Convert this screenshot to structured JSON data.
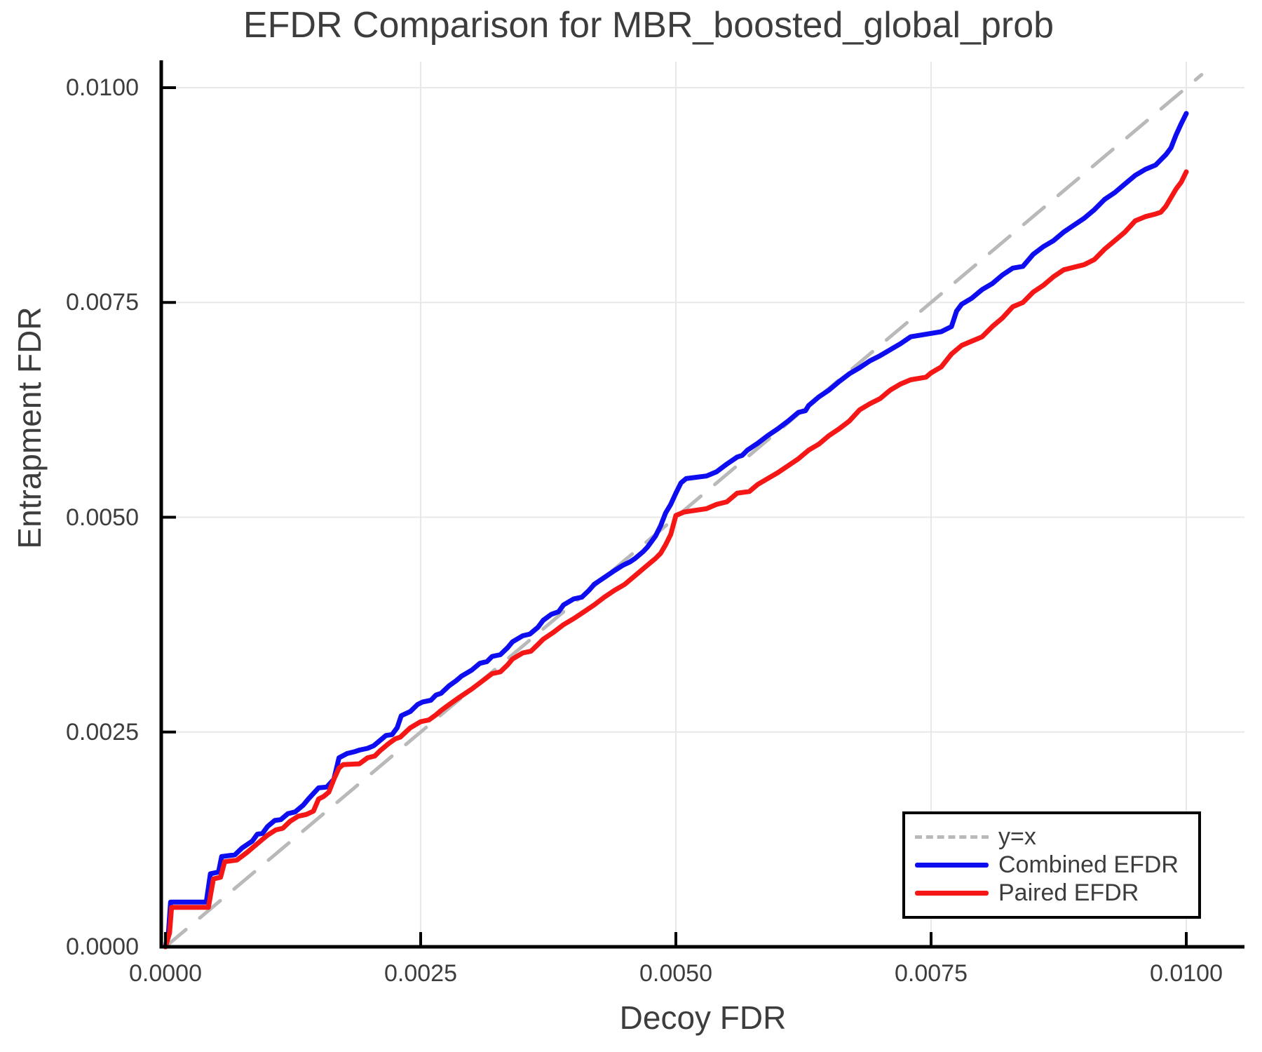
{
  "title": "EFDR Comparison for MBR_boosted_global_prob",
  "x_axis": {
    "label": "Decoy FDR",
    "tick_values": [
      0.0,
      0.0025,
      0.005,
      0.0075,
      0.01
    ],
    "tick_labels": [
      "0.0000",
      "0.0025",
      "0.0050",
      "0.0075",
      "0.0100"
    ]
  },
  "y_axis": {
    "label": "Entrapment FDR",
    "tick_values": [
      0.0,
      0.0025,
      0.005,
      0.0075,
      0.01
    ],
    "tick_labels": [
      "0.0000",
      "0.0025",
      "0.0050",
      "0.0075",
      "0.0100"
    ]
  },
  "legend": [
    {
      "label": "y=x",
      "color": "#b9b9b9",
      "dashed": true
    },
    {
      "label": "Combined EFDR",
      "color": "#0d0df0",
      "dashed": false
    },
    {
      "label": "Paired EFDR",
      "color": "#f51616",
      "dashed": false
    }
  ],
  "colors": {
    "combined": "#0d0df0",
    "paired": "#f51616",
    "identity": "#b9b9b9",
    "grid": "#e8e8e8",
    "axis": "#000000",
    "text": "#3d3d3d"
  },
  "chart_data": {
    "type": "line",
    "title": "EFDR Comparison for MBR_boosted_global_prob",
    "xlabel": "Decoy FDR",
    "ylabel": "Entrapment FDR",
    "xlim": [
      0,
      0.0106
    ],
    "ylim": [
      0,
      0.0103
    ],
    "grid": true,
    "legend_position": "bottom-right",
    "series": [
      {
        "name": "y=x",
        "style": "dashed",
        "color": "#b9b9b9",
        "width": 5,
        "points": [
          [
            0.0,
            0.0
          ],
          [
            0.01015,
            0.01015
          ]
        ]
      },
      {
        "name": "Combined EFDR",
        "style": "solid",
        "color": "#0d0df0",
        "width": 7,
        "points": [
          [
            0.0,
            0.0
          ],
          [
            3e-05,
            0.00018
          ],
          [
            5e-05,
            0.00052
          ],
          [
            0.0004,
            0.00052
          ],
          [
            0.00044,
            0.00085
          ],
          [
            0.00052,
            0.00087
          ],
          [
            0.00055,
            0.00105
          ],
          [
            0.00068,
            0.00107
          ],
          [
            0.00075,
            0.00115
          ],
          [
            0.00085,
            0.00123
          ],
          [
            0.0009,
            0.00131
          ],
          [
            0.00095,
            0.00132
          ],
          [
            0.001,
            0.0014
          ],
          [
            0.00107,
            0.00147
          ],
          [
            0.00113,
            0.00148
          ],
          [
            0.0012,
            0.00155
          ],
          [
            0.00127,
            0.00157
          ],
          [
            0.00135,
            0.00165
          ],
          [
            0.0014,
            0.00172
          ],
          [
            0.0015,
            0.00185
          ],
          [
            0.00158,
            0.00186
          ],
          [
            0.00165,
            0.00195
          ],
          [
            0.0017,
            0.0022
          ],
          [
            0.00178,
            0.00225
          ],
          [
            0.00185,
            0.00227
          ],
          [
            0.0019,
            0.00229
          ],
          [
            0.00198,
            0.00231
          ],
          [
            0.00204,
            0.00234
          ],
          [
            0.0021,
            0.0024
          ],
          [
            0.00216,
            0.00246
          ],
          [
            0.00222,
            0.00247
          ],
          [
            0.00227,
            0.00255
          ],
          [
            0.00231,
            0.00269
          ],
          [
            0.0024,
            0.00274
          ],
          [
            0.00247,
            0.00282
          ],
          [
            0.00252,
            0.00285
          ],
          [
            0.0026,
            0.00287
          ],
          [
            0.00265,
            0.00293
          ],
          [
            0.0027,
            0.00295
          ],
          [
            0.00278,
            0.00304
          ],
          [
            0.00285,
            0.0031
          ],
          [
            0.0029,
            0.00315
          ],
          [
            0.003,
            0.00322
          ],
          [
            0.00308,
            0.0033
          ],
          [
            0.00315,
            0.00332
          ],
          [
            0.0032,
            0.00338
          ],
          [
            0.00328,
            0.0034
          ],
          [
            0.00335,
            0.00348
          ],
          [
            0.0034,
            0.00355
          ],
          [
            0.0035,
            0.00362
          ],
          [
            0.00357,
            0.00364
          ],
          [
            0.00365,
            0.00372
          ],
          [
            0.0037,
            0.0038
          ],
          [
            0.00378,
            0.00387
          ],
          [
            0.00385,
            0.0039
          ],
          [
            0.0039,
            0.00398
          ],
          [
            0.004,
            0.00405
          ],
          [
            0.00408,
            0.00407
          ],
          [
            0.00415,
            0.00415
          ],
          [
            0.0042,
            0.00422
          ],
          [
            0.0043,
            0.0043
          ],
          [
            0.0044,
            0.00438
          ],
          [
            0.00448,
            0.00444
          ],
          [
            0.00455,
            0.00448
          ],
          [
            0.0046,
            0.00452
          ],
          [
            0.00468,
            0.0046
          ],
          [
            0.00472,
            0.00465
          ],
          [
            0.0048,
            0.00478
          ],
          [
            0.00485,
            0.0049
          ],
          [
            0.0049,
            0.00505
          ],
          [
            0.00495,
            0.00515
          ],
          [
            0.005,
            0.00528
          ],
          [
            0.00505,
            0.0054
          ],
          [
            0.0051,
            0.00545
          ],
          [
            0.0053,
            0.00548
          ],
          [
            0.0054,
            0.00553
          ],
          [
            0.0055,
            0.00562
          ],
          [
            0.0056,
            0.0057
          ],
          [
            0.00565,
            0.00572
          ],
          [
            0.0057,
            0.00578
          ],
          [
            0.0058,
            0.00586
          ],
          [
            0.0059,
            0.00595
          ],
          [
            0.006,
            0.00603
          ],
          [
            0.0061,
            0.00612
          ],
          [
            0.0062,
            0.00622
          ],
          [
            0.00627,
            0.00624
          ],
          [
            0.0063,
            0.0063
          ],
          [
            0.0064,
            0.0064
          ],
          [
            0.0065,
            0.00648
          ],
          [
            0.0066,
            0.00658
          ],
          [
            0.0067,
            0.00667
          ],
          [
            0.0068,
            0.00674
          ],
          [
            0.0069,
            0.00682
          ],
          [
            0.007,
            0.00688
          ],
          [
            0.0071,
            0.00695
          ],
          [
            0.0072,
            0.00702
          ],
          [
            0.0073,
            0.0071
          ],
          [
            0.0076,
            0.00716
          ],
          [
            0.0077,
            0.00722
          ],
          [
            0.00775,
            0.0074
          ],
          [
            0.0078,
            0.00748
          ],
          [
            0.0079,
            0.00755
          ],
          [
            0.008,
            0.00765
          ],
          [
            0.0081,
            0.00772
          ],
          [
            0.0082,
            0.00782
          ],
          [
            0.0083,
            0.0079
          ],
          [
            0.0084,
            0.00792
          ],
          [
            0.0085,
            0.00806
          ],
          [
            0.0086,
            0.00815
          ],
          [
            0.0087,
            0.00822
          ],
          [
            0.0088,
            0.00832
          ],
          [
            0.0089,
            0.0084
          ],
          [
            0.009,
            0.00848
          ],
          [
            0.0091,
            0.00858
          ],
          [
            0.0092,
            0.0087
          ],
          [
            0.0093,
            0.00878
          ],
          [
            0.0094,
            0.00888
          ],
          [
            0.0095,
            0.00898
          ],
          [
            0.0096,
            0.00905
          ],
          [
            0.0097,
            0.0091
          ],
          [
            0.0098,
            0.00922
          ],
          [
            0.00985,
            0.0093
          ],
          [
            0.0099,
            0.00945
          ],
          [
            0.00995,
            0.00958
          ],
          [
            0.01,
            0.0097
          ]
        ]
      },
      {
        "name": "Paired EFDR",
        "style": "solid",
        "color": "#f51616",
        "width": 7,
        "points": [
          [
            0.0,
            0.0
          ],
          [
            4e-05,
            0.00016
          ],
          [
            6e-05,
            0.00046
          ],
          [
            0.00042,
            0.00046
          ],
          [
            0.00047,
            0.00079
          ],
          [
            0.00054,
            0.00081
          ],
          [
            0.00058,
            0.00099
          ],
          [
            0.0007,
            0.00101
          ],
          [
            0.0008,
            0.0011
          ],
          [
            0.0009,
            0.0012
          ],
          [
            0.001,
            0.0013
          ],
          [
            0.00108,
            0.00136
          ],
          [
            0.00115,
            0.00138
          ],
          [
            0.00122,
            0.00146
          ],
          [
            0.0013,
            0.00152
          ],
          [
            0.00138,
            0.00154
          ],
          [
            0.00145,
            0.00158
          ],
          [
            0.0015,
            0.00172
          ],
          [
            0.00155,
            0.00175
          ],
          [
            0.0016,
            0.0018
          ],
          [
            0.00165,
            0.00195
          ],
          [
            0.0017,
            0.00208
          ],
          [
            0.00174,
            0.00212
          ],
          [
            0.0019,
            0.00213
          ],
          [
            0.00198,
            0.0022
          ],
          [
            0.00205,
            0.00222
          ],
          [
            0.0021,
            0.00228
          ],
          [
            0.00218,
            0.00236
          ],
          [
            0.00225,
            0.00242
          ],
          [
            0.0023,
            0.00244
          ],
          [
            0.0024,
            0.00255
          ],
          [
            0.0025,
            0.00262
          ],
          [
            0.00258,
            0.00264
          ],
          [
            0.00265,
            0.0027
          ],
          [
            0.0027,
            0.00275
          ],
          [
            0.00278,
            0.00282
          ],
          [
            0.00285,
            0.00288
          ],
          [
            0.0029,
            0.00292
          ],
          [
            0.003,
            0.003
          ],
          [
            0.0031,
            0.00309
          ],
          [
            0.0032,
            0.00318
          ],
          [
            0.00328,
            0.0032
          ],
          [
            0.00335,
            0.00328
          ],
          [
            0.0034,
            0.00335
          ],
          [
            0.0035,
            0.00342
          ],
          [
            0.00358,
            0.00344
          ],
          [
            0.00365,
            0.00352
          ],
          [
            0.0037,
            0.00358
          ],
          [
            0.0038,
            0.00366
          ],
          [
            0.0039,
            0.00375
          ],
          [
            0.004,
            0.00382
          ],
          [
            0.0041,
            0.0039
          ],
          [
            0.0042,
            0.00398
          ],
          [
            0.0043,
            0.00407
          ],
          [
            0.0044,
            0.00415
          ],
          [
            0.0045,
            0.00422
          ],
          [
            0.0046,
            0.00432
          ],
          [
            0.0047,
            0.00442
          ],
          [
            0.0048,
            0.00452
          ],
          [
            0.00485,
            0.00458
          ],
          [
            0.0049,
            0.00468
          ],
          [
            0.00495,
            0.0048
          ],
          [
            0.005,
            0.00502
          ],
          [
            0.00508,
            0.00506
          ],
          [
            0.0053,
            0.0051
          ],
          [
            0.0054,
            0.00515
          ],
          [
            0.0055,
            0.00518
          ],
          [
            0.0056,
            0.00528
          ],
          [
            0.00572,
            0.0053
          ],
          [
            0.0058,
            0.00538
          ],
          [
            0.0059,
            0.00545
          ],
          [
            0.006,
            0.00552
          ],
          [
            0.0061,
            0.0056
          ],
          [
            0.0062,
            0.00568
          ],
          [
            0.0063,
            0.00578
          ],
          [
            0.0064,
            0.00585
          ],
          [
            0.0065,
            0.00595
          ],
          [
            0.0066,
            0.00603
          ],
          [
            0.0067,
            0.00612
          ],
          [
            0.0068,
            0.00625
          ],
          [
            0.0069,
            0.00632
          ],
          [
            0.007,
            0.00638
          ],
          [
            0.0071,
            0.00648
          ],
          [
            0.0072,
            0.00655
          ],
          [
            0.0073,
            0.0066
          ],
          [
            0.00745,
            0.00663
          ],
          [
            0.0075,
            0.00668
          ],
          [
            0.0076,
            0.00675
          ],
          [
            0.0077,
            0.0069
          ],
          [
            0.0078,
            0.007
          ],
          [
            0.0079,
            0.00705
          ],
          [
            0.008,
            0.0071
          ],
          [
            0.0081,
            0.00722
          ],
          [
            0.0082,
            0.00732
          ],
          [
            0.0083,
            0.00745
          ],
          [
            0.0084,
            0.0075
          ],
          [
            0.0085,
            0.00762
          ],
          [
            0.0086,
            0.0077
          ],
          [
            0.0087,
            0.0078
          ],
          [
            0.0088,
            0.00788
          ],
          [
            0.0089,
            0.00791
          ],
          [
            0.009,
            0.00794
          ],
          [
            0.0091,
            0.008
          ],
          [
            0.0092,
            0.00812
          ],
          [
            0.0093,
            0.00822
          ],
          [
            0.0094,
            0.00832
          ],
          [
            0.0095,
            0.00845
          ],
          [
            0.0096,
            0.0085
          ],
          [
            0.0097,
            0.00853
          ],
          [
            0.00975,
            0.00855
          ],
          [
            0.0098,
            0.00862
          ],
          [
            0.0099,
            0.00882
          ],
          [
            0.00995,
            0.0089
          ],
          [
            0.01,
            0.00902
          ]
        ]
      }
    ]
  }
}
